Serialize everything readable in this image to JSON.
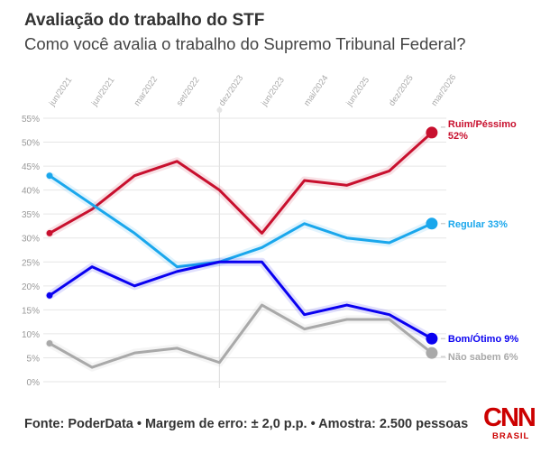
{
  "header": {
    "title": "Avaliação do trabalho do STF",
    "subtitle": "Como você avalia o trabalho do Supremo Tribunal Federal?"
  },
  "footer": {
    "text": "Fonte: PoderData • Margem de erro: ± 2,0 p.p. • Amostra: 2.500 pessoas"
  },
  "logo": {
    "main": "CNN",
    "sub": "BRASIL",
    "color": "#cc0000"
  },
  "chart_data": {
    "type": "line",
    "title": "Avaliação do trabalho do STF",
    "subtitle": "Como você avalia o trabalho do Supremo Tribunal Federal?",
    "xlabel": "",
    "ylabel": "",
    "categories": [
      "jun/2021",
      "jun/2021",
      "mar2022",
      "set/2022",
      "dez/2023",
      "jun/2023",
      "mai/2024",
      "jun/2025",
      "dez/2025",
      "mar/2026"
    ],
    "y_ticks": [
      "0%",
      "5%",
      "10%",
      "15%",
      "20%",
      "25%",
      "30%",
      "35%",
      "40%",
      "45%",
      "50%",
      "55%"
    ],
    "ylim": [
      0,
      55
    ],
    "grid": true,
    "highlight_category_index": 4,
    "series": [
      {
        "name": "Ruim/Péssimo",
        "end_label": "52%",
        "color": "#c8102e",
        "values": [
          31,
          36,
          43,
          46,
          40,
          31,
          42,
          41,
          44,
          52
        ]
      },
      {
        "name": "Regular",
        "end_label": "33%",
        "color": "#1aa7ec",
        "values": [
          43,
          37,
          31,
          24,
          25,
          28,
          33,
          30,
          29,
          33
        ]
      },
      {
        "name": "Bom/Ótimo",
        "end_label": "9%",
        "color": "#0a00f0",
        "values": [
          18,
          24,
          20,
          23,
          25,
          25,
          14,
          16,
          14,
          9
        ]
      },
      {
        "name": "Não sabem",
        "end_label": "6%",
        "color": "#a9a9a9",
        "values": [
          8,
          3,
          6,
          7,
          4,
          16,
          11,
          13,
          13,
          6
        ]
      }
    ]
  }
}
